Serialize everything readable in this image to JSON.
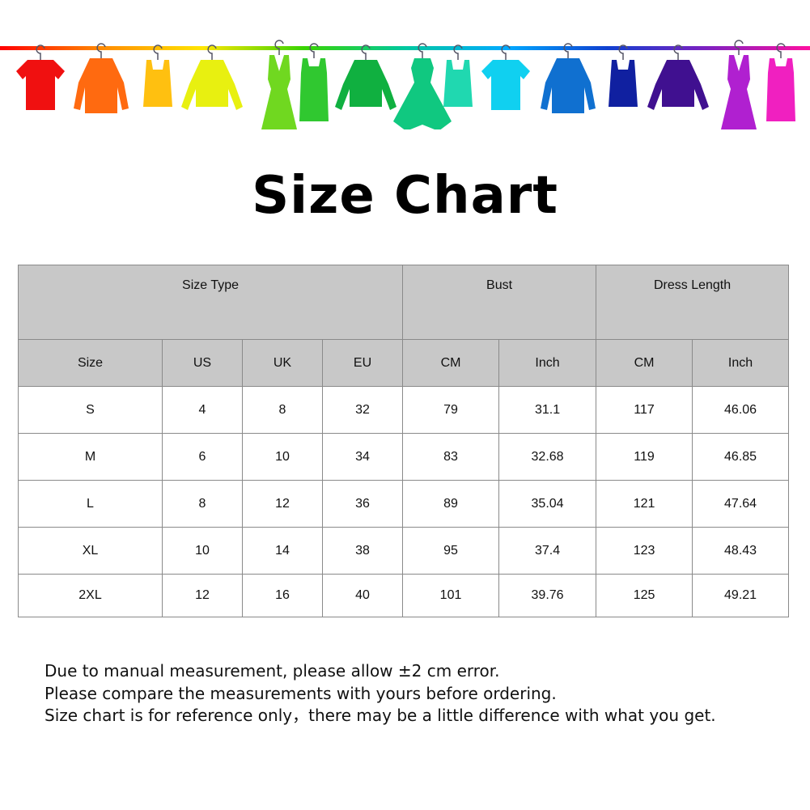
{
  "banner": {
    "rail_gradient": [
      "#ff0000",
      "#ff8a00",
      "#ffe600",
      "#39d400",
      "#00c8a0",
      "#00aaff",
      "#1040d0",
      "#8020c0",
      "#ff10a0"
    ],
    "items": [
      {
        "type": "tshirt",
        "color": "#f01010"
      },
      {
        "type": "shirt",
        "color": "#ff6a10"
      },
      {
        "type": "tank",
        "color": "#ffc010"
      },
      {
        "type": "sweater",
        "color": "#e8f010"
      },
      {
        "type": "dress",
        "color": "#70d820"
      },
      {
        "type": "belted-dress",
        "color": "#30c830"
      },
      {
        "type": "sweater",
        "color": "#10b040"
      },
      {
        "type": "wide-dress",
        "color": "#10c880"
      },
      {
        "type": "tank",
        "color": "#20d8b0"
      },
      {
        "type": "tshirt",
        "color": "#10d0f0"
      },
      {
        "type": "shirt",
        "color": "#1070d0"
      },
      {
        "type": "tank",
        "color": "#1020a0"
      },
      {
        "type": "sweater",
        "color": "#401090"
      },
      {
        "type": "dress",
        "color": "#b020d0"
      },
      {
        "type": "belted-dress",
        "color": "#f020c0"
      }
    ]
  },
  "title": "Size Chart",
  "table": {
    "group_headers": [
      "Size Type",
      "Bust",
      "Dress Length"
    ],
    "columns": [
      "Size",
      "US",
      "UK",
      "EU",
      "CM",
      "Inch",
      "CM",
      "Inch"
    ],
    "rows": [
      [
        "S",
        "4",
        "8",
        "32",
        "79",
        "31.1",
        "117",
        "46.06"
      ],
      [
        "M",
        "6",
        "10",
        "34",
        "83",
        "32.68",
        "119",
        "46.85"
      ],
      [
        "L",
        "8",
        "12",
        "36",
        "89",
        "35.04",
        "121",
        "47.64"
      ],
      [
        "XL",
        "10",
        "14",
        "38",
        "95",
        "37.4",
        "123",
        "48.43"
      ],
      [
        "2XL",
        "12",
        "16",
        "40",
        "101",
        "39.76",
        "125",
        "49.21"
      ]
    ]
  },
  "notes": [
    "Due to manual measurement, please allow ±2 cm error.",
    "Please compare the measurements with yours before ordering.",
    "Size chart is for reference only，there may be a little difference with what you get."
  ]
}
